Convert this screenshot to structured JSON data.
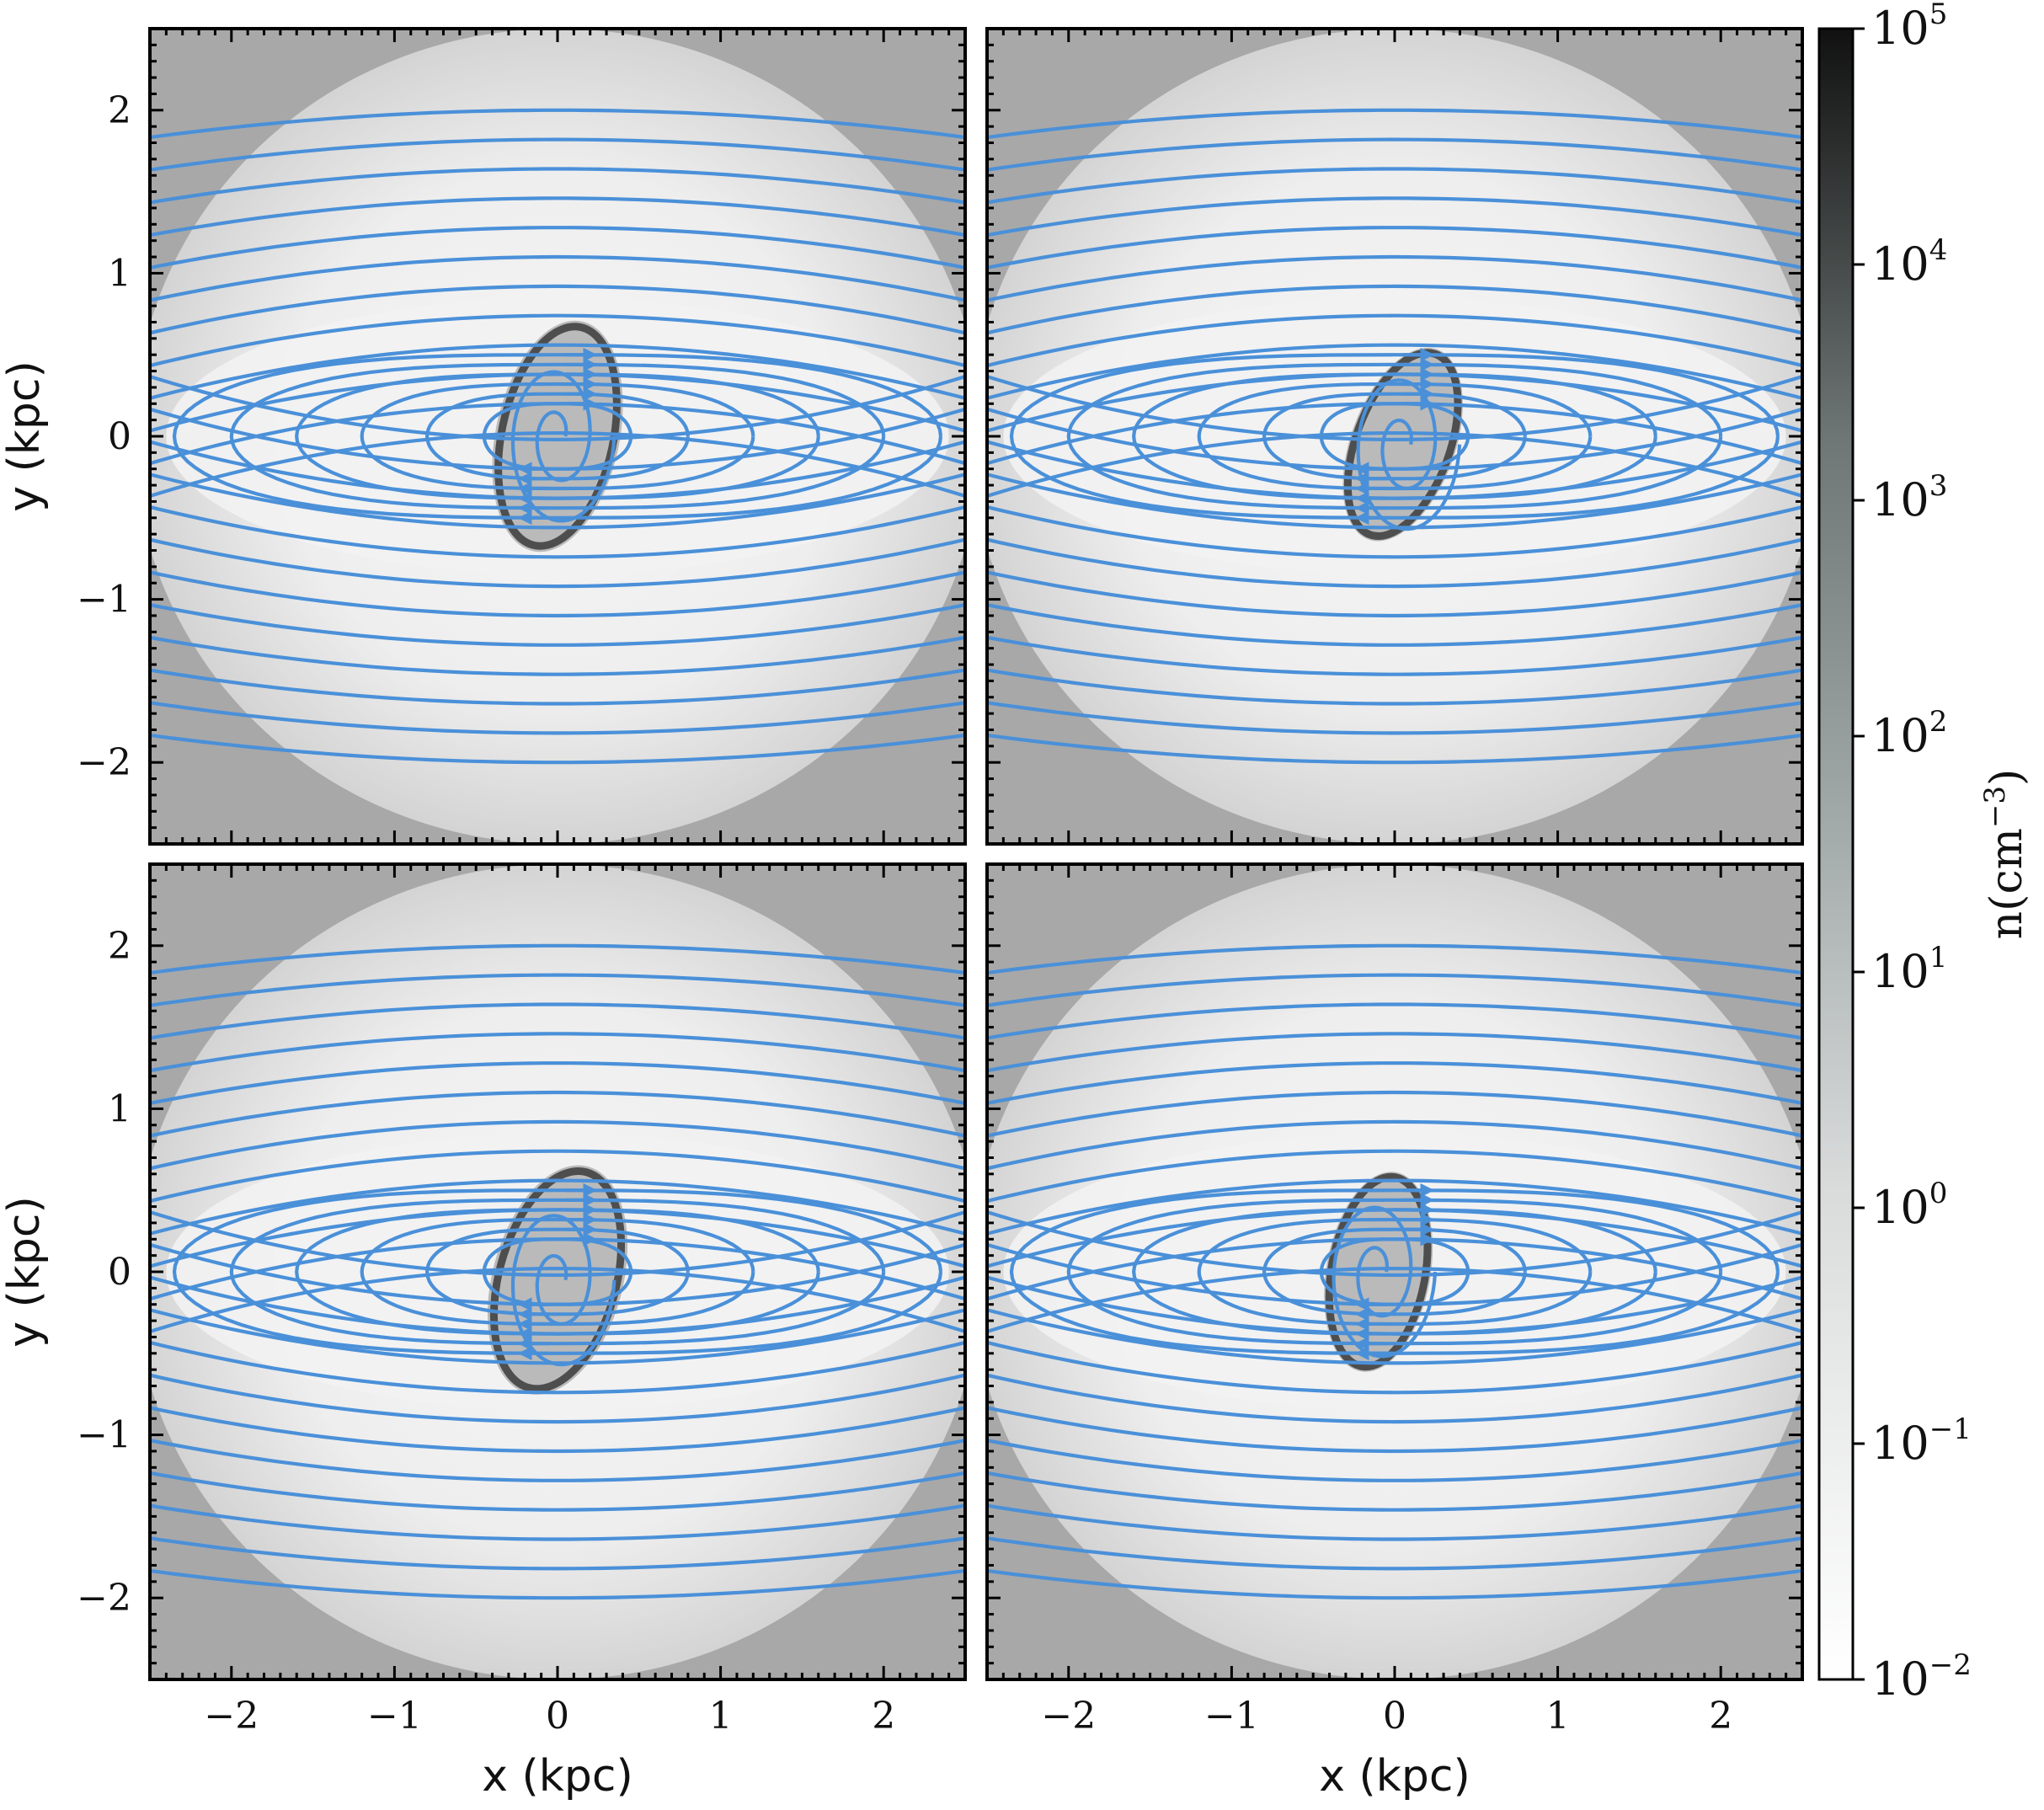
{
  "chart_data": {
    "type": "heatmap",
    "description_of_overlay": "streamlines",
    "panels": [
      {
        "id": "top-left",
        "core_tilt_deg": 78,
        "core_x": 0.0,
        "core_y": 0.0,
        "core_rx": 0.38,
        "core_ry": 0.72
      },
      {
        "id": "top-right",
        "core_tilt_deg": 70,
        "core_x": 0.05,
        "core_y": -0.05,
        "core_rx": 0.32,
        "core_ry": 0.62
      },
      {
        "id": "bottom-left",
        "core_tilt_deg": 75,
        "core_x": 0.0,
        "core_y": -0.05,
        "core_rx": 0.4,
        "core_ry": 0.72
      },
      {
        "id": "bottom-right",
        "core_tilt_deg": 80,
        "core_x": -0.1,
        "core_y": 0.0,
        "core_rx": 0.32,
        "core_ry": 0.62
      }
    ],
    "x_ticks": [
      "−2",
      "−1",
      "0",
      "1",
      "2"
    ],
    "x_tick_values": [
      -2,
      -1,
      0,
      1,
      2
    ],
    "y_ticks": [
      "2",
      "1",
      "0",
      "−1",
      "−2"
    ],
    "y_tick_values": [
      2,
      1,
      0,
      -1,
      -2
    ],
    "xlim": [
      -2.5,
      2.5
    ],
    "ylim": [
      -2.5,
      2.5
    ],
    "xlabel": "x (kpc)",
    "ylabel": "y (kpc)",
    "colorbar": {
      "label": "n(cm",
      "label_exp": "−3",
      "label_close": ")",
      "scale": "log",
      "range": [
        0.01,
        100000
      ],
      "ticks": [
        {
          "base": "10",
          "exp": "5",
          "value": 100000
        },
        {
          "base": "10",
          "exp": "4",
          "value": 10000
        },
        {
          "base": "10",
          "exp": "3",
          "value": 1000
        },
        {
          "base": "10",
          "exp": "2",
          "value": 100
        },
        {
          "base": "10",
          "exp": "1",
          "value": 10
        },
        {
          "base": "10",
          "exp": "0",
          "value": 1
        },
        {
          "base": "10",
          "exp": "−1",
          "value": 0.1
        },
        {
          "base": "10",
          "exp": "−2",
          "value": 0.01
        }
      ]
    },
    "colors": {
      "streamline": "#4a90d9",
      "background_outer": "#a8a8a8",
      "background_inner": "#f2f2f2",
      "core": "#333333"
    }
  }
}
